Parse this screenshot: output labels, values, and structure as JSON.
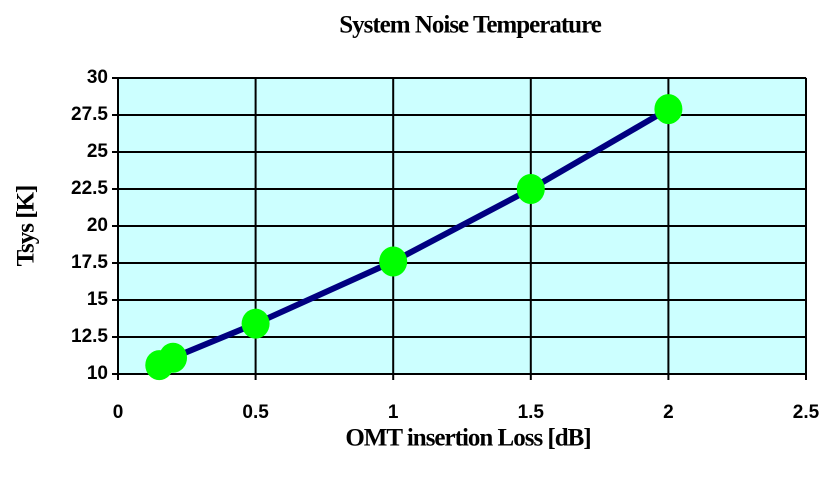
{
  "chart_data": {
    "type": "line",
    "title": "System Noise Temperature",
    "x_label": "OMT insertion Loss [dB]",
    "y_label": "Tsys [K]",
    "x": [
      0.15,
      0.2,
      0.5,
      1,
      1.5,
      2
    ],
    "series": [
      {
        "name": "Tsys",
        "color": "#000080",
        "marker_color": "#00ff00",
        "values": [
          10.6,
          11.1,
          13.4,
          17.6,
          22.5,
          27.9
        ]
      }
    ],
    "xlim": [
      0,
      2.5
    ],
    "xticks": [
      0,
      0.5,
      1,
      1.5,
      2,
      2.5
    ],
    "ylim": [
      10,
      30
    ],
    "yticks": [
      10,
      12.5,
      15,
      17.5,
      20,
      22.5,
      25,
      27.5,
      30
    ],
    "grid": true,
    "plot_background": "#ccffff"
  }
}
